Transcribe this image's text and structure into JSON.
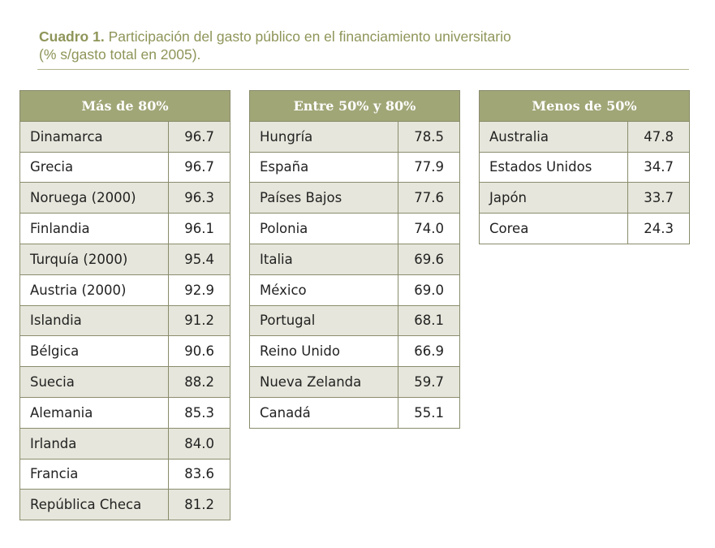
{
  "title": {
    "lead": "Cuadro 1.",
    "text": "Participación del gasto público en el financiamiento universitario",
    "subtitle": "(% s/gasto total en 2005)."
  },
  "groups": [
    {
      "header": "Más de 80%",
      "rows": [
        {
          "country": "Dinamarca",
          "value": "96.7"
        },
        {
          "country": "Grecia",
          "value": "96.7"
        },
        {
          "country": "Noruega (2000)",
          "value": "96.3"
        },
        {
          "country": "Finlandia",
          "value": "96.1"
        },
        {
          "country": "Turquía (2000)",
          "value": "95.4"
        },
        {
          "country": "Austria (2000)",
          "value": "92.9"
        },
        {
          "country": "Islandia",
          "value": "91.2"
        },
        {
          "country": "Bélgica",
          "value": "90.6"
        },
        {
          "country": "Suecia",
          "value": "88.2"
        },
        {
          "country": "Alemania",
          "value": "85.3"
        },
        {
          "country": "Irlanda",
          "value": "84.0"
        },
        {
          "country": "Francia",
          "value": "83.6"
        },
        {
          "country": "República Checa",
          "value": "81.2"
        }
      ]
    },
    {
      "header": "Entre 50% y 80%",
      "rows": [
        {
          "country": "Hungría",
          "value": "78.5"
        },
        {
          "country": "España",
          "value": "77.9"
        },
        {
          "country": "Países Bajos",
          "value": "77.6"
        },
        {
          "country": "Polonia",
          "value": "74.0"
        },
        {
          "country": "Italia",
          "value": "69.6"
        },
        {
          "country": "México",
          "value": "69.0"
        },
        {
          "country": "Portugal",
          "value": "68.1"
        },
        {
          "country": "Reino Unido",
          "value": "66.9"
        },
        {
          "country": "Nueva Zelanda",
          "value": "59.7"
        },
        {
          "country": "Canadá",
          "value": "55.1"
        }
      ]
    },
    {
      "header": "Menos de 50%",
      "rows": [
        {
          "country": "Australia",
          "value": "47.8"
        },
        {
          "country": "Estados Unidos",
          "value": "34.7"
        },
        {
          "country": "Japón",
          "value": "33.7"
        },
        {
          "country": "Corea",
          "value": "24.3"
        }
      ]
    }
  ],
  "colors": {
    "title": "#8f9559",
    "header_bg": "#a1a677",
    "stripe_bg": "#e6e6dc",
    "border": "#8a8c6c"
  }
}
